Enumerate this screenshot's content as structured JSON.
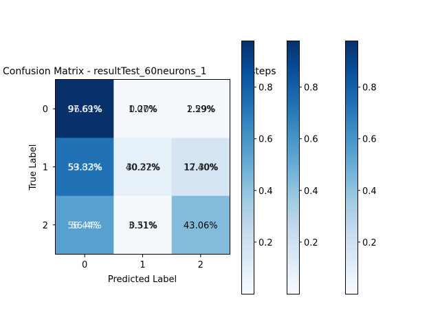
{
  "chart_data": {
    "type": "heatmap",
    "title": "Confusion Matrix - resultTest_60neurons_1‌‌‌5steps",
    "title_visible": "Confusion Matrix - resultTest_60neurons_1",
    "title_tail": "steps",
    "xlabel": "Predicted Label",
    "ylabel": "True Label",
    "x_ticks": [
      "0",
      "1",
      "2"
    ],
    "y_ticks": [
      "0",
      "1",
      "2"
    ],
    "colormap": "Blues",
    "cell_colors": [
      [
        "#08306b",
        "#f5f9fe",
        "#f5f9fe"
      ],
      [
        "#2171b5",
        "#e6f0f9",
        "#d6e5f4"
      ],
      [
        "#58a1cf",
        "#f5f9fe",
        "#83bbdb"
      ]
    ],
    "overlapping_labels": [
      [
        [
          "97.69%",
          "96.61%"
        ],
        [
          "1.07%",
          "0.20%"
        ],
        [
          "1.59%",
          "2.29%"
        ]
      ],
      [
        [
          "59.82%",
          "53.33%"
        ],
        [
          "40.27%",
          "30.32%"
        ],
        [
          "12.40%",
          "17.30%"
        ]
      ],
      [
        [
          "56.44%",
          "56.4%"
        ],
        [
          "3.31%",
          "0.51%"
        ],
        [
          "43.06%"
        ]
      ]
    ],
    "colorbars": [
      {
        "ticks": [
          "0.2",
          "0.4",
          "0.6",
          "0.8"
        ],
        "range": [
          0.0,
          0.98
        ]
      },
      {
        "ticks": [
          "0.2",
          "0.4",
          "0.6",
          "0.8"
        ],
        "range": [
          0.0,
          0.98
        ]
      },
      {
        "ticks": [
          "0.2",
          "0.4",
          "0.6",
          "0.8"
        ],
        "range": [
          0.0,
          0.98
        ]
      }
    ]
  }
}
